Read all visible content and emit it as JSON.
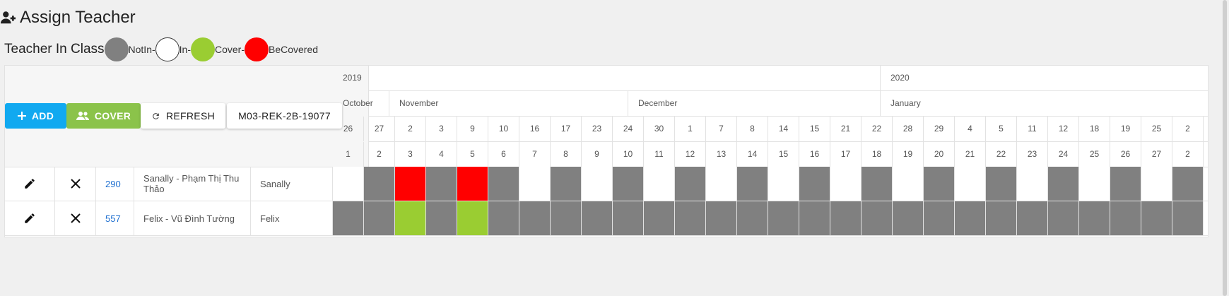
{
  "page": {
    "title": "Assign Teacher",
    "title_icon": "user-plus-icon"
  },
  "legend": {
    "label": "Teacher In Class",
    "items": [
      {
        "name": "NotIn-",
        "color": "#808080"
      },
      {
        "name": "In-",
        "color": "#ffffff"
      },
      {
        "name": "Cover-",
        "color": "#9acd32"
      },
      {
        "name": "BeCovered",
        "color": "#ff0000"
      }
    ]
  },
  "toolbar": {
    "add_label": "ADD",
    "cover_label": "COVER",
    "refresh_label": "REFRESH",
    "class_code": "M03-REK-2B-19077"
  },
  "calendar": {
    "years": [
      "2019",
      "2020"
    ],
    "months": [
      "October",
      "November",
      "December",
      "January"
    ],
    "dates": [
      "26",
      "27",
      "2",
      "3",
      "9",
      "10",
      "16",
      "17",
      "23",
      "24",
      "30",
      "1",
      "7",
      "8",
      "14",
      "15",
      "21",
      "22",
      "28",
      "29",
      "4",
      "5",
      "11",
      "12",
      "18",
      "19",
      "25",
      "2"
    ],
    "weeks": [
      "1",
      "2",
      "3",
      "4",
      "5",
      "6",
      "7",
      "8",
      "9",
      "10",
      "11",
      "12",
      "13",
      "14",
      "15",
      "16",
      "17",
      "18",
      "19",
      "20",
      "21",
      "22",
      "23",
      "24",
      "25",
      "26",
      "27",
      "2"
    ]
  },
  "rows": [
    {
      "id": "290",
      "full_name": "Sanally - Phạm Thị Thu Thảo",
      "short_name": "Sanally",
      "status": [
        "In",
        "NotIn",
        "BeCovered",
        "NotIn",
        "BeCovered",
        "NotIn",
        "In",
        "NotIn",
        "In",
        "NotIn",
        "In",
        "NotIn",
        "In",
        "NotIn",
        "In",
        "NotIn",
        "In",
        "NotIn",
        "In",
        "NotIn",
        "In",
        "NotIn",
        "In",
        "NotIn",
        "In",
        "NotIn",
        "In",
        "NotIn"
      ]
    },
    {
      "id": "557",
      "full_name": "Felix - Vũ Đình Tường",
      "short_name": "Felix",
      "status": [
        "NotIn",
        "NotIn",
        "Cover",
        "NotIn",
        "Cover",
        "NotIn",
        "NotIn",
        "NotIn",
        "NotIn",
        "NotIn",
        "NotIn",
        "NotIn",
        "NotIn",
        "NotIn",
        "NotIn",
        "NotIn",
        "NotIn",
        "NotIn",
        "NotIn",
        "NotIn",
        "NotIn",
        "NotIn",
        "NotIn",
        "NotIn",
        "NotIn",
        "NotIn",
        "NotIn",
        "NotIn"
      ]
    }
  ],
  "status_colors": {
    "NotIn": "#808080",
    "In": "#ffffff",
    "Cover": "#9acd32",
    "BeCovered": "#ff0000"
  }
}
